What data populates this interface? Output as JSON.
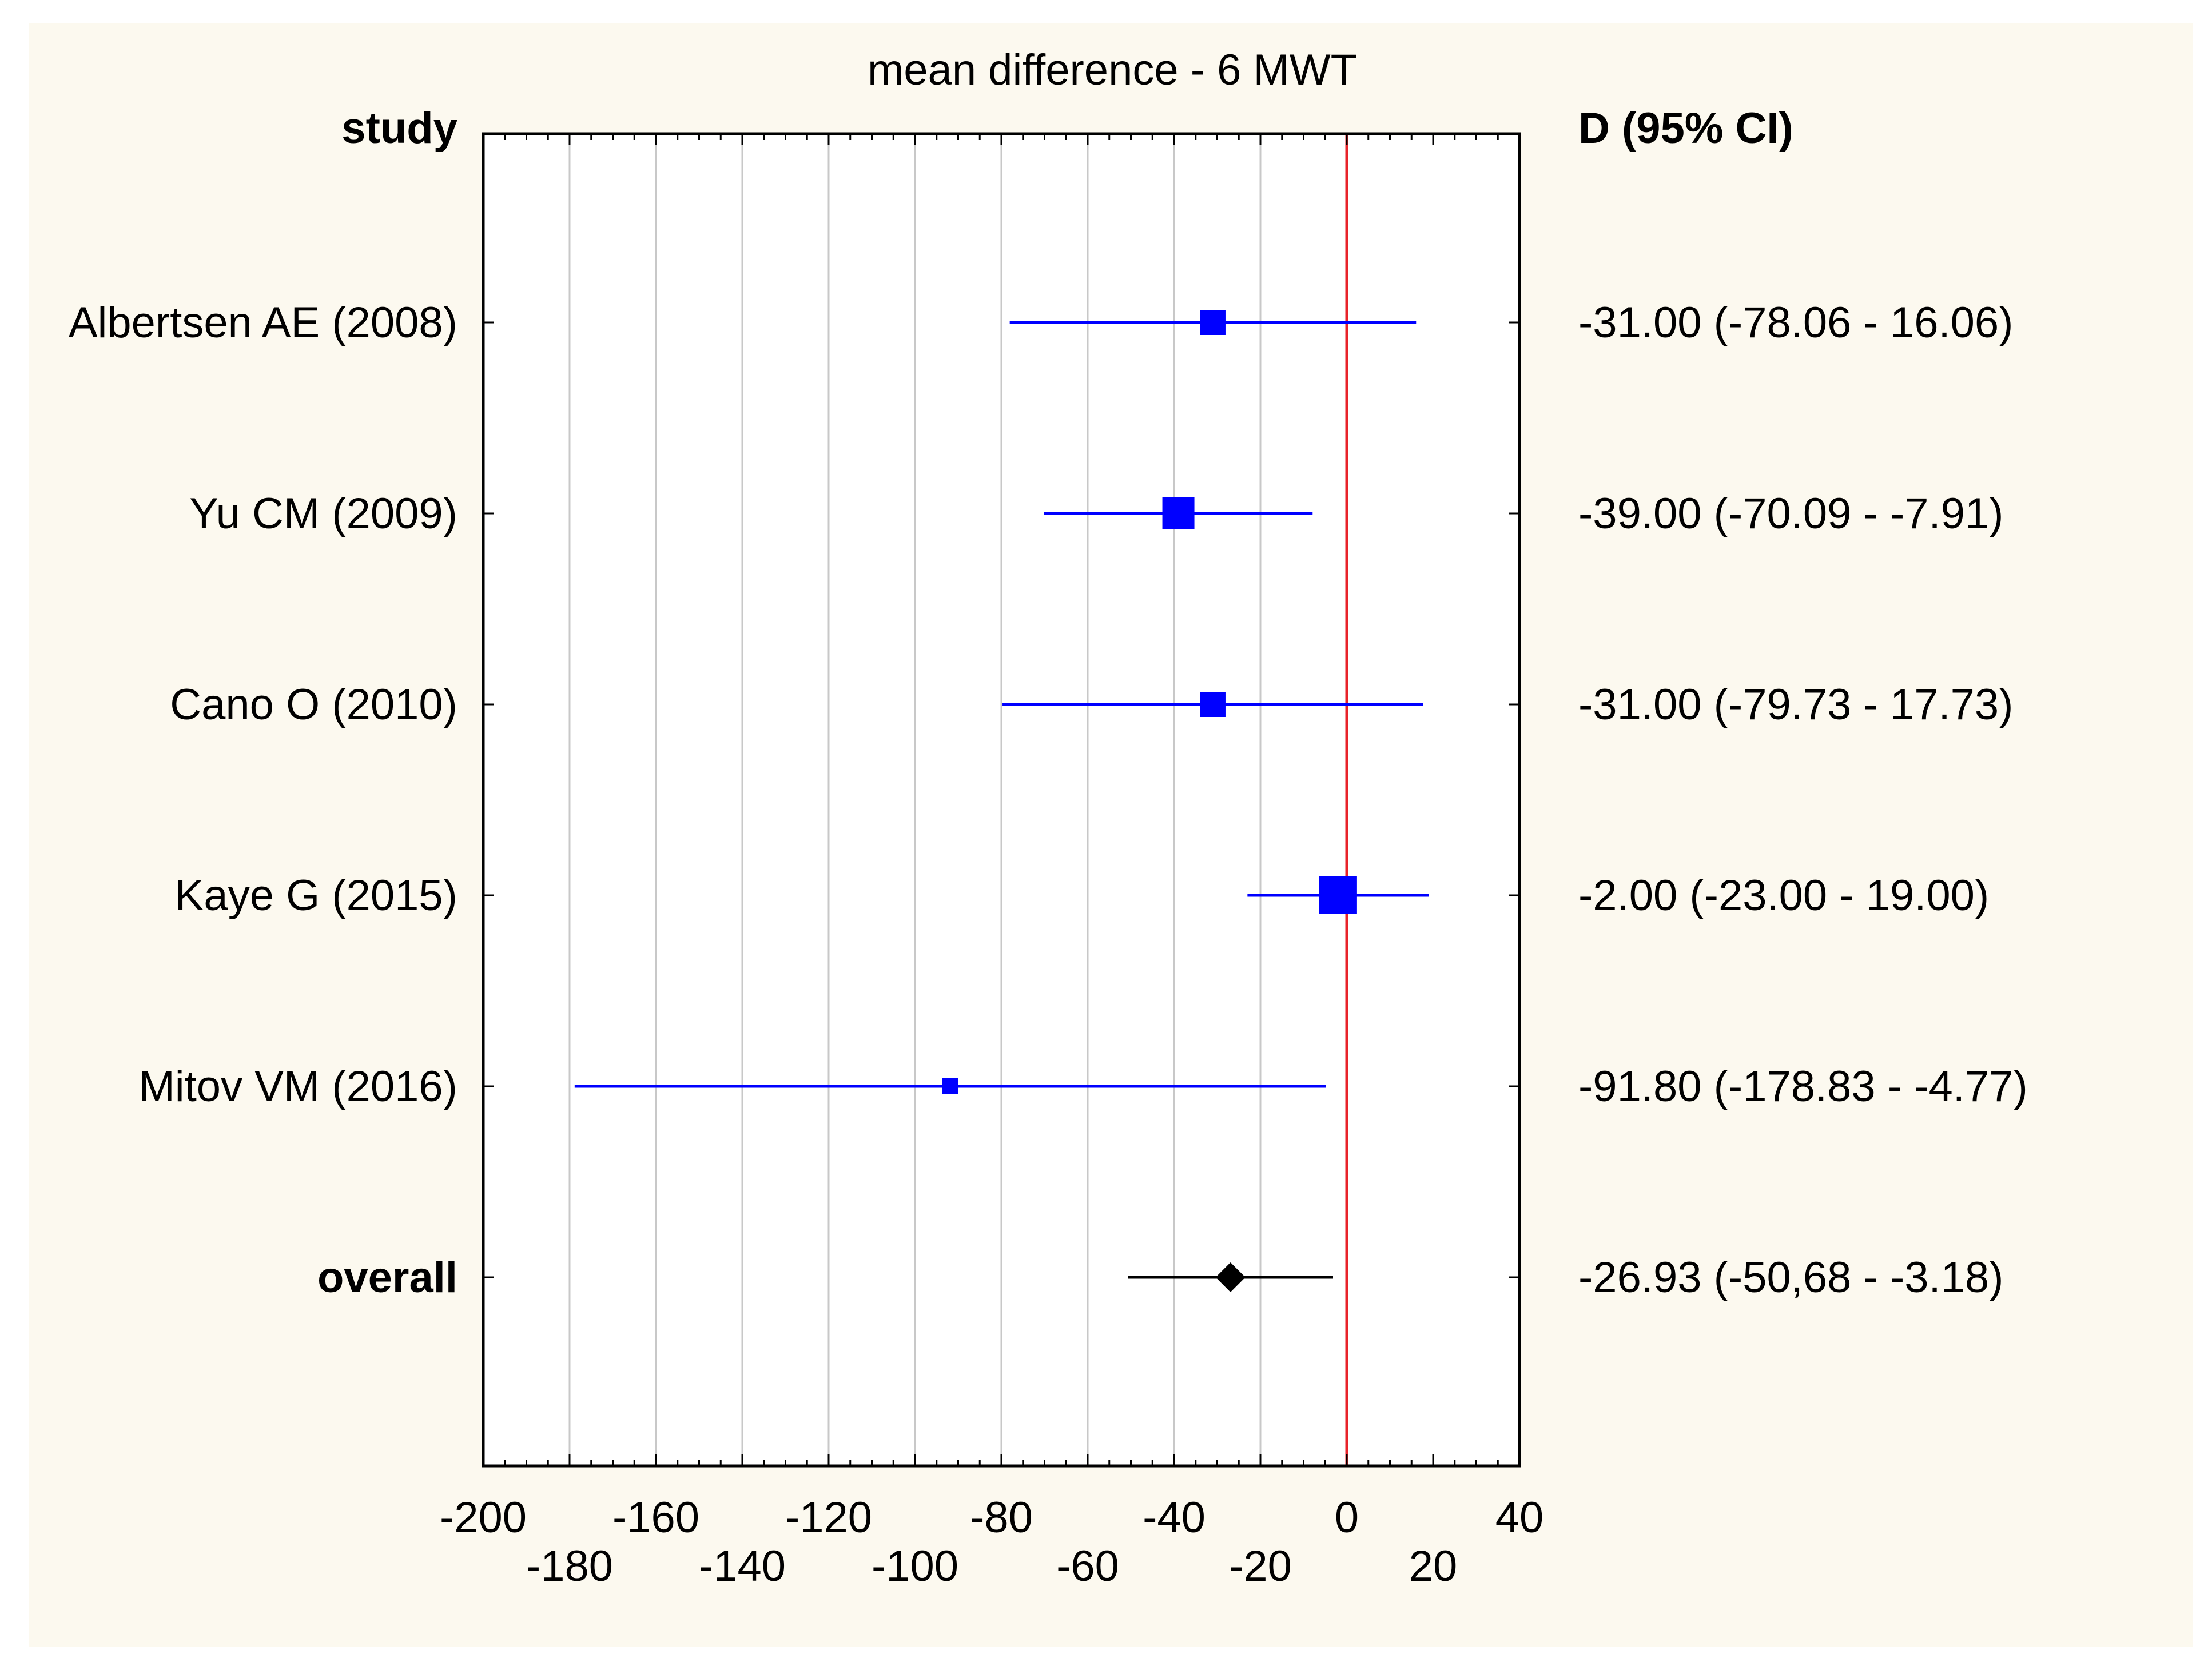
{
  "chart_data": {
    "type": "forest",
    "title": "mean difference - 6 MWT",
    "ylabel": "study",
    "right_header": "D (95% CI)",
    "xlim": [
      -200,
      40
    ],
    "xticks_top_row": [
      "-200",
      "-160",
      "-120",
      "-80",
      "-40",
      "0",
      "40"
    ],
    "xticks_bottom_row": [
      "-180",
      "-140",
      "-100",
      "-60",
      "-20",
      "20"
    ],
    "xtick_values_top": [
      -200,
      -160,
      -120,
      -80,
      -40,
      0,
      40
    ],
    "xtick_values_bottom": [
      -180,
      -140,
      -100,
      -60,
      -20,
      20
    ],
    "gridlines": [
      -180,
      -160,
      -140,
      -120,
      -100,
      -80,
      -60,
      -40,
      -20
    ],
    "reference_line": 0,
    "studies": [
      {
        "label": "Albertsen AE (2008)",
        "d": -31.0,
        "lo": -78.06,
        "hi": 16.06,
        "weight": 2,
        "ci_text": "-31.00 (-78.06 - 16.06)"
      },
      {
        "label": "Yu CM (2009)",
        "d": -39.0,
        "lo": -70.09,
        "hi": -7.91,
        "weight": 3,
        "ci_text": "-39.00 (-70.09 - -7.91)"
      },
      {
        "label": "Cano O (2010)",
        "d": -31.0,
        "lo": -79.73,
        "hi": 17.73,
        "weight": 2,
        "ci_text": "-31.00 (-79.73 - 17.73)"
      },
      {
        "label": "Kaye G (2015)",
        "d": -2.0,
        "lo": -23.0,
        "hi": 19.0,
        "weight": 4,
        "ci_text": "-2.00 (-23.00 - 19.00)"
      },
      {
        "label": "Mitov VM (2016)",
        "d": -91.8,
        "lo": -178.83,
        "hi": -4.77,
        "weight": 1,
        "ci_text": "-91.80 (-178.83 - -4.77)"
      }
    ],
    "overall": {
      "label": "overall",
      "d": -26.93,
      "lo": -50.68,
      "hi": -3.18,
      "ci_text": "-26.93 (-50,68 - -3.18)"
    }
  },
  "colors": {
    "background": "#fcf9ef",
    "study_color": "#0000ff",
    "overall_color": "#000000",
    "reference_color": "#e8232a",
    "grid_color": "#c8c8c8"
  }
}
